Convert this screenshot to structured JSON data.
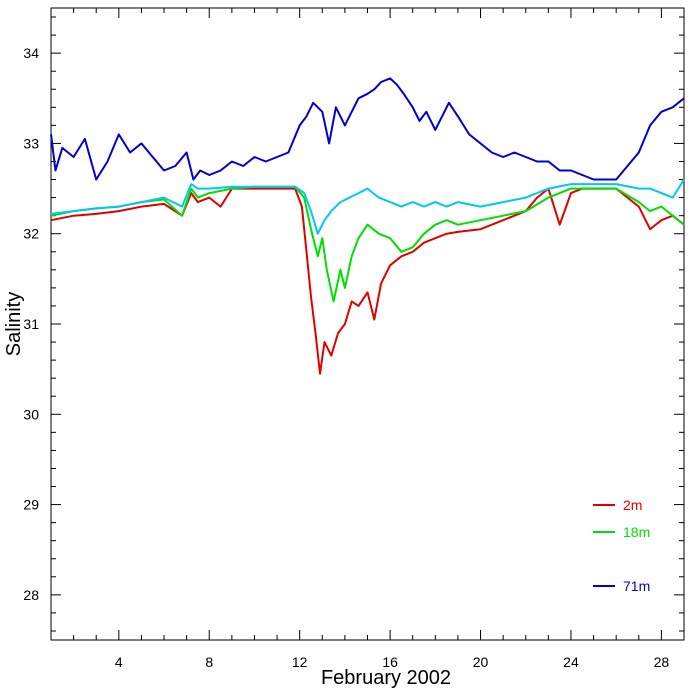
{
  "chart_data": {
    "type": "line",
    "xlabel": "February 2002",
    "ylabel": "Salinity",
    "xlim": [
      1,
      29
    ],
    "ylim": [
      27.5,
      34.5
    ],
    "xticks": [
      4,
      8,
      12,
      16,
      20,
      24,
      28
    ],
    "yticks": [
      28,
      29,
      30,
      31,
      32,
      33,
      34
    ],
    "grid": false,
    "legend_position": "lower-right",
    "series": [
      {
        "name": "2m",
        "color": "#e00000",
        "x": [
          1,
          2,
          3,
          4,
          5,
          6,
          6.8,
          7.2,
          7.5,
          8,
          8.5,
          9,
          10,
          11,
          11.8,
          12.1,
          12.3,
          12.5,
          12.7,
          12.9,
          13.1,
          13.4,
          13.7,
          14,
          14.3,
          14.6,
          15,
          15.3,
          15.6,
          16,
          16.5,
          17,
          17.5,
          18,
          18.5,
          19,
          20,
          21,
          22,
          22.5,
          23,
          23.5,
          24,
          24.5,
          25,
          26,
          27,
          27.5,
          28,
          28.5,
          29
        ],
        "y": [
          32.15,
          32.2,
          32.22,
          32.25,
          32.3,
          32.33,
          32.2,
          32.45,
          32.35,
          32.4,
          32.3,
          32.5,
          32.5,
          32.5,
          32.5,
          32.3,
          31.8,
          31.3,
          30.9,
          30.45,
          30.8,
          30.65,
          30.9,
          31.0,
          31.25,
          31.2,
          31.35,
          31.05,
          31.45,
          31.65,
          31.75,
          31.8,
          31.9,
          31.95,
          32.0,
          32.02,
          32.05,
          32.15,
          32.25,
          32.4,
          32.5,
          32.1,
          32.45,
          32.5,
          32.5,
          32.5,
          32.3,
          32.05,
          32.15,
          32.2,
          32.1
        ]
      },
      {
        "name": "18m",
        "color": "#00e000",
        "x": [
          1,
          2,
          3,
          4,
          5,
          6,
          6.8,
          7.2,
          7.5,
          8,
          9,
          10,
          11,
          11.8,
          12.2,
          12.5,
          12.8,
          13,
          13.2,
          13.5,
          13.8,
          14,
          14.3,
          14.6,
          15,
          15.5,
          16,
          16.5,
          17,
          17.5,
          18,
          18.5,
          19,
          20,
          21,
          22,
          23,
          24,
          25,
          26,
          27,
          27.5,
          28,
          28.5,
          29
        ],
        "y": [
          32.2,
          32.25,
          32.28,
          32.3,
          32.35,
          32.38,
          32.2,
          32.5,
          32.4,
          32.45,
          32.5,
          32.52,
          32.52,
          32.52,
          32.4,
          32.05,
          31.75,
          31.95,
          31.6,
          31.25,
          31.6,
          31.4,
          31.75,
          31.95,
          32.1,
          32.0,
          31.95,
          31.8,
          31.85,
          32.0,
          32.1,
          32.15,
          32.1,
          32.15,
          32.2,
          32.25,
          32.4,
          32.5,
          32.5,
          32.5,
          32.35,
          32.25,
          32.3,
          32.2,
          32.1
        ]
      },
      {
        "name": "",
        "color": "#00c8f0",
        "x": [
          1,
          2,
          3,
          4,
          5,
          6,
          6.8,
          7.2,
          7.5,
          8,
          9,
          10,
          11,
          11.8,
          12.2,
          12.5,
          12.8,
          13.1,
          13.4,
          13.8,
          14.2,
          14.6,
          15,
          15.5,
          16,
          16.5,
          17,
          17.5,
          18,
          18.5,
          19,
          20,
          21,
          22,
          23,
          24,
          25,
          26,
          27,
          27.5,
          28,
          28.5,
          29
        ],
        "y": [
          32.22,
          32.25,
          32.28,
          32.3,
          32.35,
          32.4,
          32.3,
          32.55,
          32.5,
          32.5,
          32.52,
          32.52,
          32.52,
          32.52,
          32.45,
          32.25,
          32.0,
          32.15,
          32.25,
          32.35,
          32.4,
          32.45,
          32.5,
          32.4,
          32.35,
          32.3,
          32.35,
          32.3,
          32.35,
          32.3,
          32.35,
          32.3,
          32.35,
          32.4,
          32.5,
          32.55,
          32.55,
          32.55,
          32.5,
          32.5,
          32.45,
          32.4,
          32.6
        ]
      },
      {
        "name": "71m",
        "color": "#0000d0",
        "x": [
          1,
          1.2,
          1.5,
          2,
          2.5,
          3,
          3.5,
          4,
          4.5,
          5,
          5.5,
          6,
          6.5,
          7,
          7.3,
          7.6,
          8,
          8.5,
          9,
          9.5,
          10,
          10.5,
          11,
          11.5,
          12,
          12.3,
          12.6,
          13,
          13.3,
          13.6,
          14,
          14.3,
          14.6,
          15,
          15.3,
          15.6,
          16,
          16.3,
          16.6,
          17,
          17.3,
          17.6,
          18,
          18.3,
          18.6,
          19,
          19.5,
          20,
          20.5,
          21,
          21.5,
          22,
          22.5,
          23,
          23.5,
          24,
          24.5,
          25,
          25.5,
          26,
          26.5,
          27,
          27.5,
          28,
          28.5,
          29
        ],
        "y": [
          33.1,
          32.7,
          32.95,
          32.85,
          33.05,
          32.6,
          32.8,
          33.1,
          32.9,
          33.0,
          32.85,
          32.7,
          32.75,
          32.9,
          32.6,
          32.7,
          32.65,
          32.7,
          32.8,
          32.75,
          32.85,
          32.8,
          32.85,
          32.9,
          33.2,
          33.3,
          33.45,
          33.35,
          33.0,
          33.4,
          33.2,
          33.35,
          33.5,
          33.55,
          33.6,
          33.68,
          33.72,
          33.65,
          33.55,
          33.4,
          33.25,
          33.35,
          33.15,
          33.3,
          33.45,
          33.3,
          33.1,
          33.0,
          32.9,
          32.85,
          32.9,
          32.85,
          32.8,
          32.8,
          32.7,
          32.7,
          32.65,
          32.6,
          32.6,
          32.6,
          32.75,
          32.9,
          33.2,
          33.35,
          33.4,
          33.5
        ]
      }
    ]
  }
}
